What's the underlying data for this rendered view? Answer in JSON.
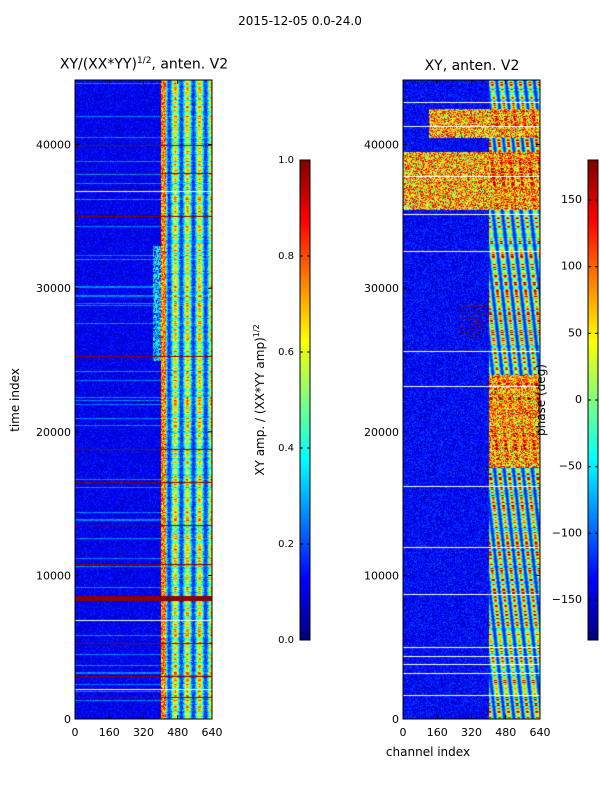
{
  "figure": {
    "suptitle": "2015-12-05 0.0-24.0"
  },
  "chart_data": [
    {
      "type": "heatmap",
      "title": "XY/(XX*YY)",
      "title_exponent": "1/2",
      "title_suffix": ", anten. V2",
      "xlabel": "",
      "ylabel": "time index",
      "x_ticks": [
        0,
        160,
        320,
        480,
        640
      ],
      "y_ticks": [
        0,
        10000,
        20000,
        30000,
        40000
      ],
      "xlim": [
        0,
        640
      ],
      "ylim": [
        0,
        44500
      ],
      "colormap": "jet",
      "colorbar": {
        "label_main": "XY amp. / (XX*YY amp)",
        "label_exponent": "1/2",
        "range": [
          0.0,
          1.0
        ],
        "ticks": [
          "0.0",
          "0.2",
          "0.4",
          "0.6",
          "0.8",
          "1.0"
        ]
      },
      "features": {
        "background_value": 0.05,
        "bright_channel_band": [
          400,
          640
        ],
        "saturated_rows": [
          8500,
          8600,
          1500,
          3000,
          5300,
          10800,
          13500,
          16500,
          18800,
          25300,
          35000,
          38000,
          40000
        ],
        "white_rows": [
          36800,
          6900,
          2100
        ]
      }
    },
    {
      "type": "heatmap",
      "title": "XY, anten. V2",
      "xlabel": "channel index",
      "ylabel": "",
      "x_ticks": [
        0,
        160,
        320,
        480,
        640
      ],
      "y_ticks": [
        0,
        10000,
        20000,
        30000,
        40000
      ],
      "xlim": [
        0,
        640
      ],
      "ylim": [
        0,
        44500
      ],
      "colormap": "jet",
      "colorbar": {
        "label_main": "phase (deg)",
        "range": [
          -180,
          180
        ],
        "ticks": [
          "−150",
          "−100",
          "−50",
          "0",
          "50",
          "100",
          "150"
        ]
      },
      "features": {
        "background_value": -160,
        "bright_channel_band": [
          400,
          640
        ],
        "white_rows": [
          43000,
          41300,
          37800,
          35200,
          32600,
          25600,
          23200,
          16200,
          12000,
          8700,
          5000,
          4400,
          3800,
          3200,
          1700
        ],
        "hot_regions": [
          [
            0,
            640,
            35500,
            39500
          ],
          [
            120,
            640,
            40500,
            42500
          ],
          [
            400,
            640,
            17500,
            24000
          ]
        ]
      }
    }
  ],
  "colors": {
    "jet_low": "#00007f",
    "jet_high": "#7f0000",
    "axis": "#000000"
  }
}
